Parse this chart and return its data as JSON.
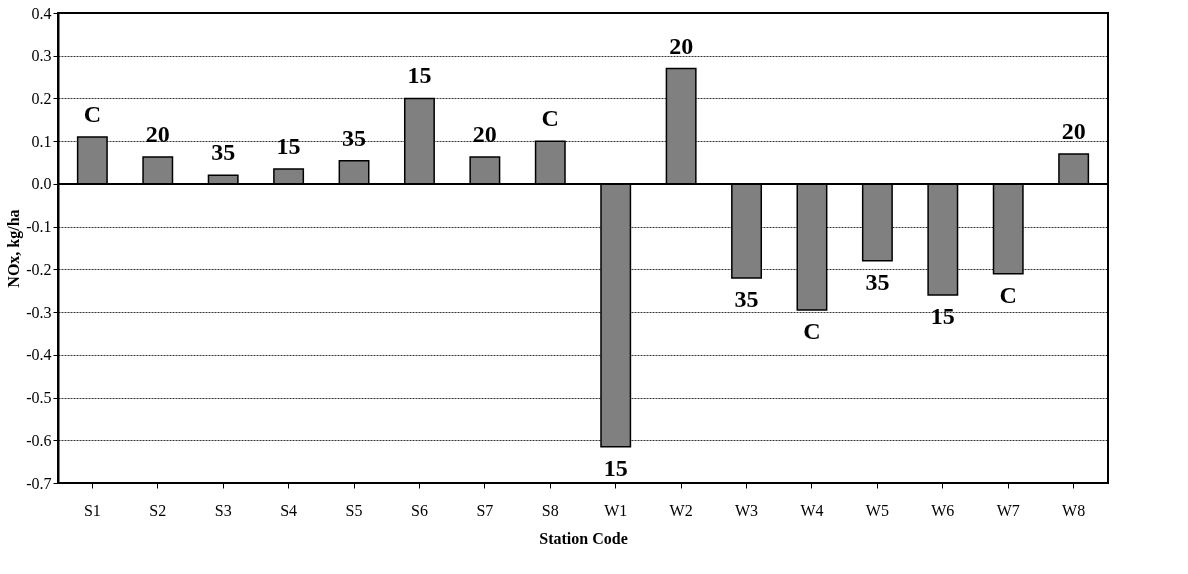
{
  "chart_data": {
    "type": "bar",
    "xlabel": "Station Code",
    "ylabel": "NOx, kg/ha",
    "categories": [
      "S1",
      "S2",
      "S3",
      "S4",
      "S5",
      "S6",
      "S7",
      "S8",
      "W1",
      "W2",
      "W3",
      "W4",
      "W5",
      "W6",
      "W7",
      "W8"
    ],
    "values": [
      0.11,
      0.063,
      0.02,
      0.035,
      0.054,
      0.2,
      0.063,
      0.1,
      -0.615,
      0.27,
      -0.22,
      -0.295,
      -0.18,
      -0.26,
      -0.21,
      0.07
    ],
    "annotations": [
      "C",
      "20",
      "35",
      "15",
      "35",
      "15",
      "20",
      "C",
      "15",
      "20",
      "35",
      "C",
      "35",
      "15",
      "C",
      "20"
    ],
    "color": "#808080",
    "ylim": [
      -0.7,
      0.4
    ],
    "yticks": [
      {
        "value": -0.7,
        "label": "-0.7"
      },
      {
        "value": -0.6,
        "label": "-0.6"
      },
      {
        "value": -0.5,
        "label": "-0.5"
      },
      {
        "value": -0.4,
        "label": "-0.4"
      },
      {
        "value": -0.3,
        "label": "-0.3"
      },
      {
        "value": -0.2,
        "label": "-0.2"
      },
      {
        "value": -0.1,
        "label": "-0.1"
      },
      {
        "value": 0,
        "label": "0.0"
      },
      {
        "value": 0.1,
        "label": "0.1"
      },
      {
        "value": 0.2,
        "label": "0.2"
      },
      {
        "value": 0.3,
        "label": "0.3"
      },
      {
        "value": 0.4,
        "label": "0.4"
      }
    ],
    "grid": "y"
  }
}
